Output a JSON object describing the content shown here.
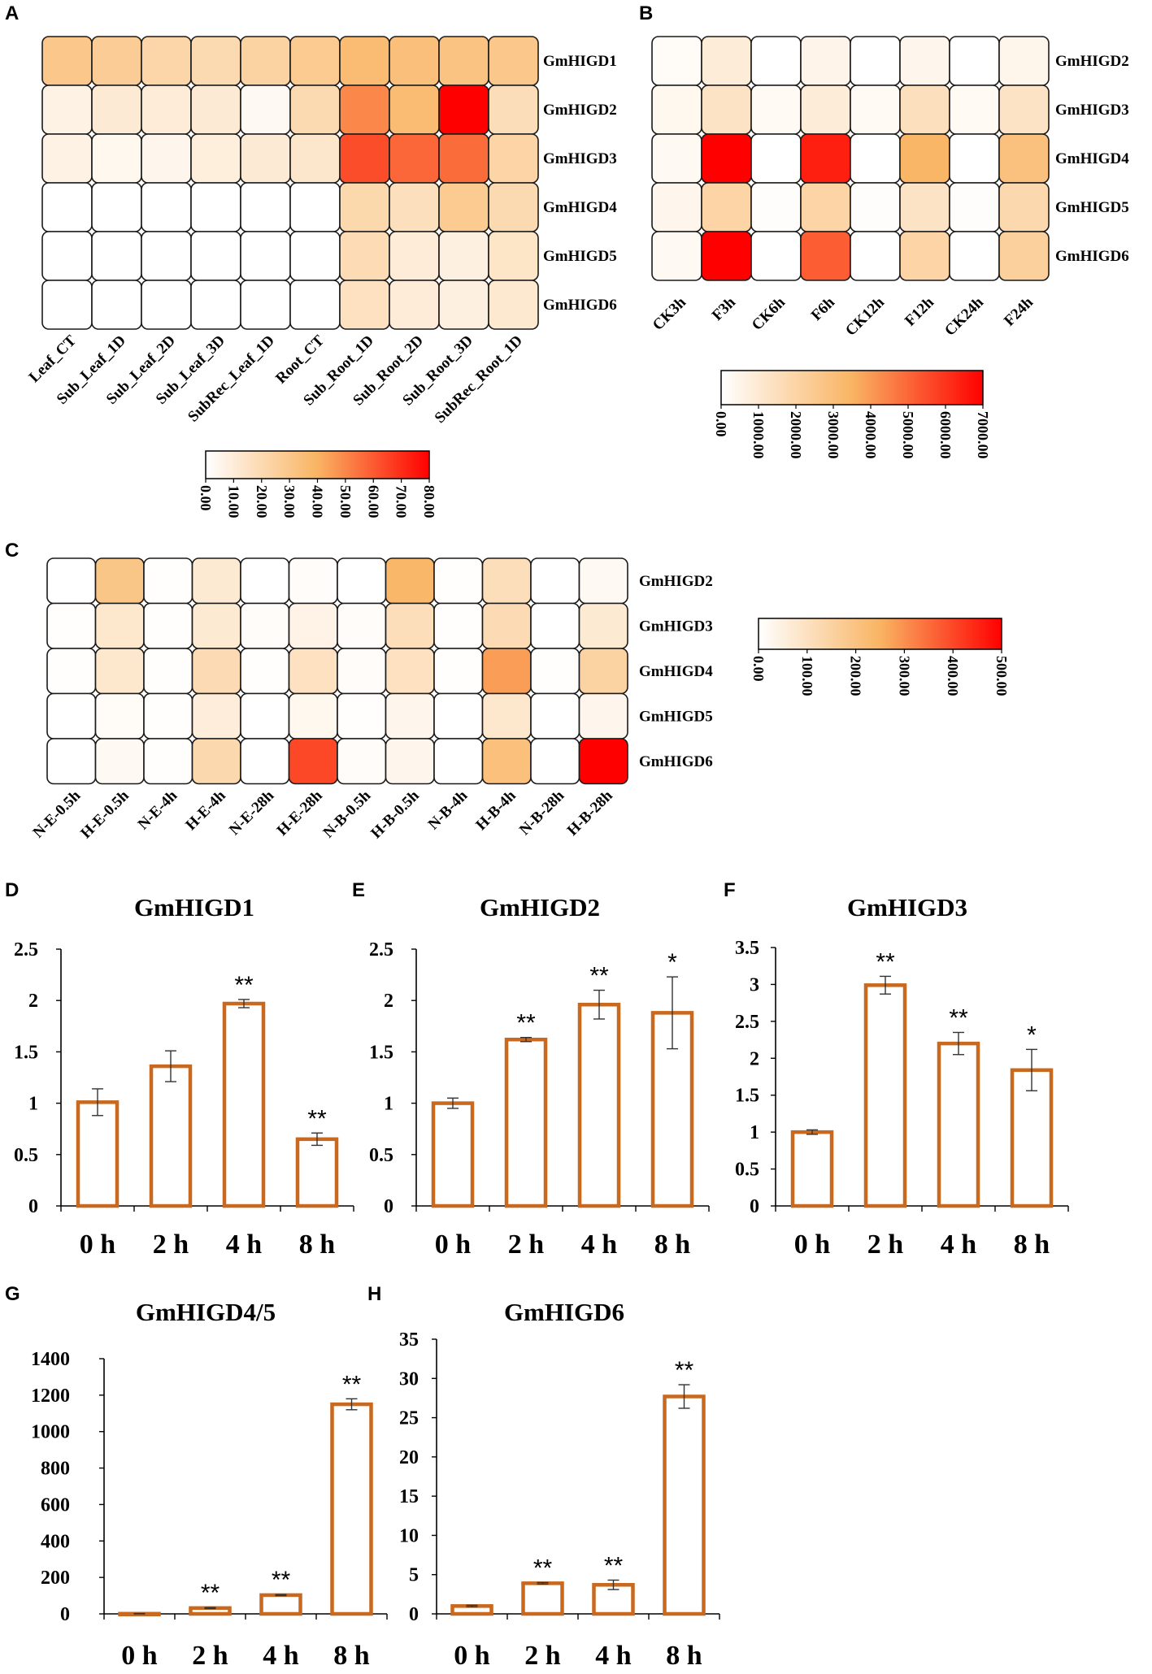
{
  "chart_data": [
    {
      "panel": "A",
      "type": "heatmap",
      "title": "",
      "rows": [
        "GmHIGD1",
        "GmHIGD2",
        "GmHIGD3",
        "GmHIGD4",
        "GmHIGD5",
        "GmHIGD6"
      ],
      "columns": [
        "Leaf_CT",
        "Sub_Leaf_1D",
        "Sub_Leaf_2D",
        "Sub_Leaf_3D",
        "SubRec_Leaf_1D",
        "Root_CT",
        "Sub_Root_1D",
        "Sub_Root_2D",
        "Sub_Root_3D",
        "SubRec_Root_1D"
      ],
      "values": [
        [
          30,
          27,
          22,
          20,
          24,
          28,
          36,
          34,
          32,
          30
        ],
        [
          7,
          11,
          10,
          11,
          3,
          20,
          50,
          36,
          80,
          18
        ],
        [
          7,
          4,
          5,
          9,
          11,
          13,
          63,
          57,
          56,
          23
        ],
        [
          0,
          0,
          0,
          0,
          0,
          0,
          21,
          17,
          28,
          20
        ],
        [
          0,
          0,
          0,
          0,
          0,
          0,
          19,
          10,
          8,
          14
        ],
        [
          0,
          0,
          0,
          0,
          0,
          0,
          16,
          10,
          8,
          12
        ]
      ],
      "scale_min": 0,
      "scale_max": 80,
      "scale_labels": [
        "0.00",
        "10.00",
        "20.00",
        "30.00",
        "40.00",
        "50.00",
        "60.00",
        "70.00",
        "80.00"
      ]
    },
    {
      "panel": "B",
      "type": "heatmap",
      "title": "",
      "rows": [
        "GmHIGD2",
        "GmHIGD3",
        "GmHIGD4",
        "GmHIGD5",
        "GmHIGD6"
      ],
      "columns": [
        "CK3h",
        "F3h",
        "CK6h",
        "F6h",
        "CK12h",
        "F12h",
        "CK24h",
        "F24h"
      ],
      "values": [
        [
          200,
          900,
          0,
          500,
          0,
          400,
          0,
          450
        ],
        [
          350,
          1300,
          250,
          900,
          250,
          1500,
          250,
          1300
        ],
        [
          300,
          7000,
          0,
          6400,
          0,
          3400,
          0,
          2900
        ],
        [
          400,
          2000,
          100,
          2000,
          100,
          1300,
          100,
          1800
        ],
        [
          300,
          7000,
          0,
          5200,
          0,
          2000,
          0,
          2200
        ]
      ],
      "scale_min": 0,
      "scale_max": 7000,
      "scale_labels": [
        "0.00",
        "1000.00",
        "2000.00",
        "3000.00",
        "4000.00",
        "5000.00",
        "6000.00",
        "7000.00"
      ]
    },
    {
      "panel": "C",
      "type": "heatmap",
      "title": "",
      "rows": [
        "GmHIGD2",
        "GmHIGD3",
        "GmHIGD4",
        "GmHIGD5",
        "GmHIGD6"
      ],
      "columns": [
        "N-E-0.5h",
        "H-E-0.5h",
        "N-E-4h",
        "H-E-4h",
        "N-E-28h",
        "H-E-28h",
        "N-B-0.5h",
        "H-B-0.5h",
        "N-B-4h",
        "H-B-4h",
        "N-B-28h",
        "H-B-28h"
      ],
      "values": [
        [
          0,
          190,
          5,
          70,
          0,
          10,
          0,
          240,
          5,
          110,
          0,
          20
        ],
        [
          5,
          80,
          5,
          70,
          10,
          40,
          10,
          110,
          5,
          120,
          0,
          70
        ],
        [
          5,
          80,
          5,
          120,
          5,
          100,
          10,
          100,
          5,
          280,
          5,
          150
        ],
        [
          0,
          15,
          5,
          60,
          0,
          25,
          5,
          30,
          0,
          80,
          0,
          30
        ],
        [
          0,
          20,
          5,
          130,
          0,
          400,
          10,
          30,
          0,
          210,
          0,
          500
        ]
      ],
      "scale_min": 0,
      "scale_max": 500,
      "scale_labels": [
        "0.00",
        "100.00",
        "200.00",
        "300.00",
        "400.00",
        "500.00"
      ]
    },
    {
      "panel": "D",
      "type": "bar",
      "title": "GmHIGD1",
      "categories": [
        "0 h",
        "2 h",
        "4 h",
        "8 h"
      ],
      "values": [
        1.01,
        1.36,
        1.97,
        0.65
      ],
      "errors": [
        0.13,
        0.15,
        0.04,
        0.06
      ],
      "significance": [
        "",
        "",
        "**",
        "**"
      ],
      "ylim": [
        0,
        2.5
      ],
      "yticks": [
        "0",
        "0.5",
        "1",
        "1.5",
        "2",
        "2.5"
      ],
      "xlabel": "",
      "ylabel": ""
    },
    {
      "panel": "E",
      "type": "bar",
      "title": "GmHIGD2",
      "categories": [
        "0 h",
        "2 h",
        "4 h",
        "8 h"
      ],
      "values": [
        1.0,
        1.62,
        1.96,
        1.88
      ],
      "errors": [
        0.05,
        0.02,
        0.14,
        0.35
      ],
      "significance": [
        "",
        "**",
        "**",
        "*"
      ],
      "ylim": [
        0,
        2.5
      ],
      "yticks": [
        "0",
        "0.5",
        "1",
        "1.5",
        "2",
        "2.5"
      ],
      "xlabel": "",
      "ylabel": ""
    },
    {
      "panel": "F",
      "type": "bar",
      "title": "GmHIGD3",
      "categories": [
        "0 h",
        "2 h",
        "4 h",
        "8 h"
      ],
      "values": [
        1.0,
        2.99,
        2.2,
        1.84
      ],
      "errors": [
        0.03,
        0.12,
        0.15,
        0.28
      ],
      "significance": [
        "",
        "**",
        "**",
        "*"
      ],
      "ylim": [
        0,
        3.5
      ],
      "yticks": [
        "0",
        "0.5",
        "1",
        "1.5",
        "2",
        "2.5",
        "3",
        "3.5"
      ],
      "xlabel": "",
      "ylabel": ""
    },
    {
      "panel": "G",
      "type": "bar",
      "title": "GmHIGD4/5",
      "categories": [
        "0 h",
        "2 h",
        "4 h",
        "8 h"
      ],
      "values": [
        1,
        32,
        103,
        1150
      ],
      "errors": [
        1,
        3,
        3,
        30
      ],
      "significance": [
        "",
        "**",
        "**",
        "**"
      ],
      "ylim": [
        0,
        1400
      ],
      "yticks": [
        "0",
        "200",
        "400",
        "600",
        "800",
        "1000",
        "1200",
        "1400"
      ],
      "xlabel": "",
      "ylabel": ""
    },
    {
      "panel": "H",
      "type": "bar",
      "title": "GmHIGD6",
      "categories": [
        "0 h",
        "2 h",
        "4 h",
        "8 h"
      ],
      "values": [
        1.0,
        3.9,
        3.7,
        27.7
      ],
      "errors": [
        0.1,
        0.1,
        0.6,
        1.5
      ],
      "significance": [
        "",
        "**",
        "**",
        "**"
      ],
      "ylim": [
        0,
        35
      ],
      "yticks": [
        "0",
        "5",
        "10",
        "15",
        "20",
        "25",
        "30",
        "35"
      ],
      "xlabel": "",
      "ylabel": ""
    }
  ],
  "colors": {
    "heat_low": "#ffffff",
    "heat_mid": "#f9b463",
    "heat_high": "#ff0000",
    "bar_outline": "#c8691f",
    "cell_border": "#1a1a1a"
  }
}
